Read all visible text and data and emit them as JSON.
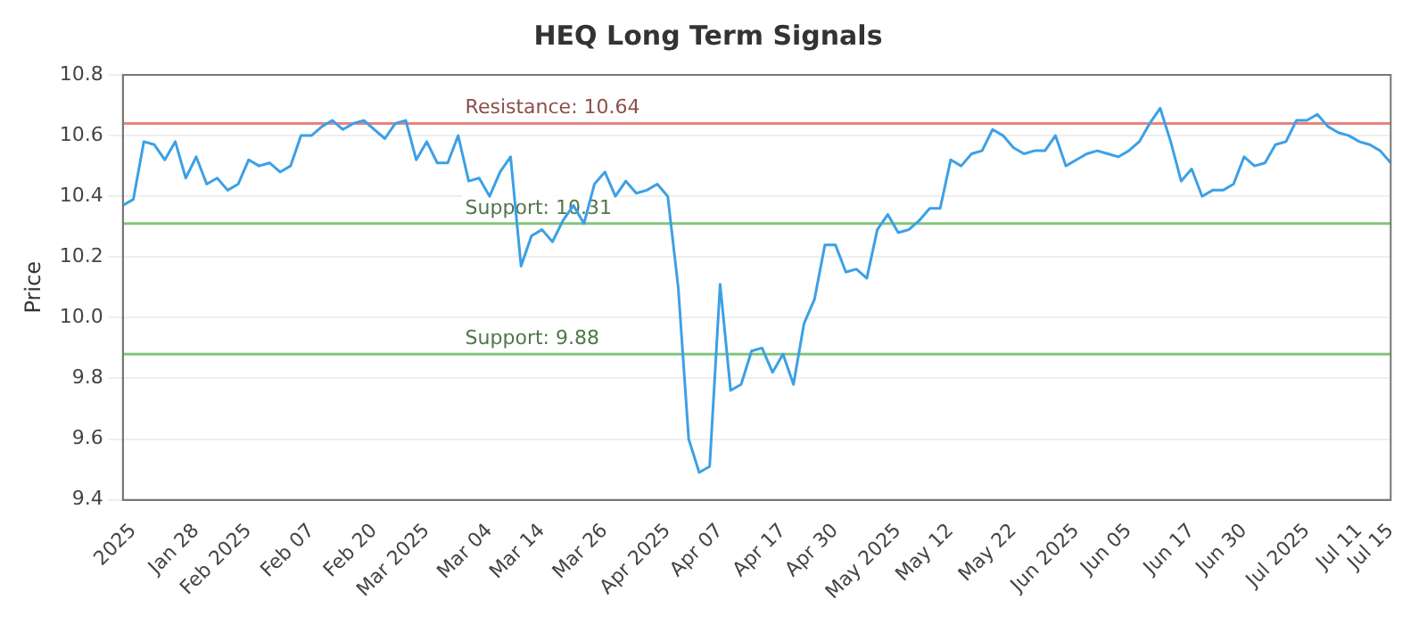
{
  "chart_data": {
    "type": "line",
    "title": "HEQ Long Term Signals",
    "ylabel": "Price",
    "categories": [
      null,
      "2025",
      null,
      null,
      null,
      null,
      null,
      "Jan 28",
      null,
      null,
      null,
      null,
      "Feb 2025",
      null,
      null,
      null,
      null,
      null,
      "Feb 07",
      null,
      null,
      null,
      null,
      null,
      "Feb 20",
      null,
      null,
      null,
      null,
      "Mar 2025",
      null,
      null,
      null,
      null,
      null,
      "Mar 04",
      null,
      null,
      null,
      null,
      "Mar 14",
      null,
      null,
      null,
      null,
      null,
      "Mar 26",
      null,
      null,
      null,
      null,
      null,
      "Apr 2025",
      null,
      null,
      null,
      null,
      "Apr 07",
      null,
      null,
      null,
      null,
      null,
      "Apr 17",
      null,
      null,
      null,
      null,
      "Apr 30",
      null,
      null,
      null,
      null,
      null,
      "May 2025",
      null,
      null,
      null,
      null,
      "May 12",
      null,
      null,
      null,
      null,
      null,
      "May 22",
      null,
      null,
      null,
      null,
      null,
      "Jun 2025",
      null,
      null,
      null,
      null,
      "Jun 05",
      null,
      null,
      null,
      null,
      null,
      "Jun 17",
      null,
      null,
      null,
      null,
      "Jun 30",
      null,
      null,
      null,
      null,
      null,
      "Jul 2025",
      null,
      null,
      null,
      null,
      "Jul 11",
      null,
      null,
      "Jul 15"
    ],
    "series": [
      {
        "color": "#3ca0e6",
        "values": [
          10.37,
          10.39,
          10.58,
          10.57,
          10.52,
          10.58,
          10.46,
          10.53,
          10.44,
          10.46,
          10.42,
          10.44,
          10.52,
          10.5,
          10.51,
          10.48,
          10.5,
          10.6,
          10.6,
          10.63,
          10.65,
          10.62,
          10.64,
          10.65,
          10.62,
          10.59,
          10.64,
          10.65,
          10.52,
          10.58,
          10.51,
          10.51,
          10.6,
          10.45,
          10.46,
          10.4,
          10.48,
          10.53,
          10.17,
          10.27,
          10.29,
          10.25,
          10.32,
          10.37,
          10.31,
          10.44,
          10.48,
          10.4,
          10.45,
          10.41,
          10.42,
          10.44,
          10.4,
          10.1,
          9.6,
          9.49,
          9.51,
          10.11,
          9.76,
          9.78,
          9.89,
          9.9,
          9.82,
          9.88,
          9.78,
          9.98,
          10.06,
          10.24,
          10.24,
          10.15,
          10.16,
          10.13,
          10.29,
          10.34,
          10.28,
          10.29,
          10.32,
          10.36,
          10.36,
          10.52,
          10.5,
          10.54,
          10.55,
          10.62,
          10.6,
          10.56,
          10.54,
          10.55,
          10.55,
          10.6,
          10.5,
          10.52,
          10.54,
          10.55,
          10.54,
          10.53,
          10.55,
          10.58,
          10.64,
          10.69,
          10.58,
          10.45,
          10.49,
          10.4,
          10.42,
          10.42,
          10.44,
          10.53,
          10.5,
          10.51,
          10.57,
          10.58,
          10.65,
          10.65,
          10.67,
          10.63,
          10.61,
          10.6,
          10.58,
          10.57,
          10.55,
          10.51
        ]
      }
    ],
    "ylim": [
      9.4,
      10.8
    ],
    "yticks": [
      9.4,
      9.6,
      9.8,
      {
        "value": 10.0,
        "label": "10.0"
      },
      10.2,
      10.4,
      10.6,
      10.8
    ],
    "grid": "y",
    "legend": false,
    "marker": "none",
    "line_style": "solid",
    "ref_lines": [
      {
        "axis": "y",
        "value": 10.64,
        "label": "Resistance: 10.64",
        "color": "#e8837f"
      },
      {
        "axis": "y",
        "value": 10.31,
        "label": "Support: 10.31",
        "color": "#84c47c"
      },
      {
        "axis": "y",
        "value": 9.88,
        "label": "Support: 9.88",
        "color": "#84c47c"
      }
    ]
  }
}
